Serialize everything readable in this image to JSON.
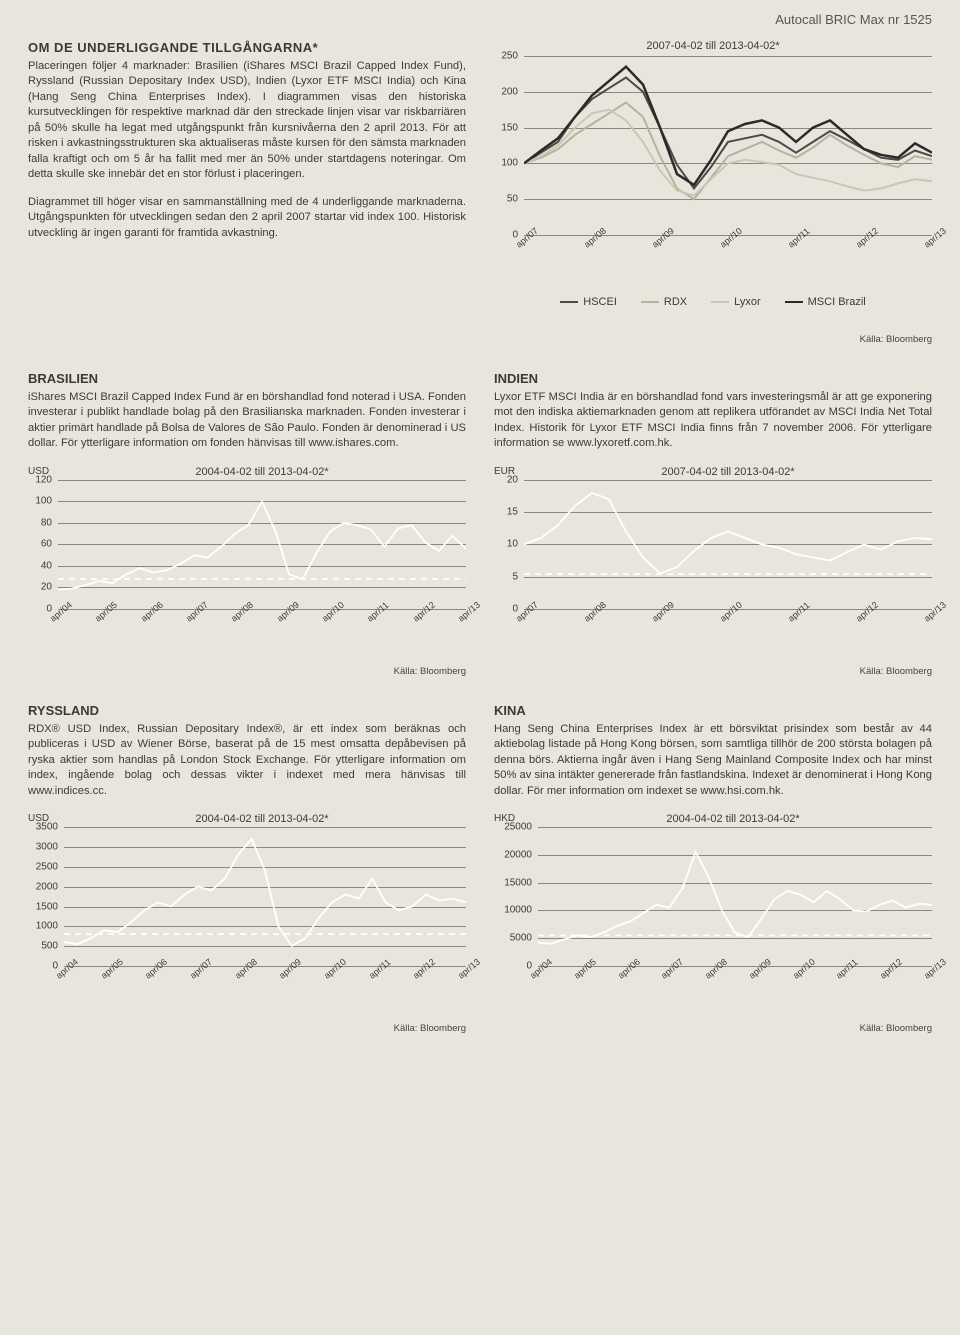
{
  "header_right": "Autocall BRIC Max nr 1525",
  "top": {
    "heading": "OM DE UNDERLIGGANDE TILLGÅNGARNA*",
    "para1": "Placeringen följer 4 marknader: Brasilien (iShares MSCI Brazil Capped Index Fund), Ryssland (Russian Depositary Index USD), Indien (Lyxor ETF MSCI India) och Kina (Hang Seng China Enterprises Index). I diagrammen visas den historiska kursutvecklingen för respektive marknad där den streckade linjen visar var riskbarriären på 50% skulle ha legat med utgångspunkt från kursnivåerna den 2 april 2013. För att risken i avkastningsstrukturen ska aktualiseras måste kursen för den sämsta marknaden falla kraftigt och om 5 år ha fallit med mer än 50% under startdagens noteringar. Om detta skulle ske innebär det en stor förlust i placeringen.",
    "para2": "Diagrammet till höger visar en sammanställning med de 4 underliggande marknaderna. Utgångspunkten för utvecklingen sedan den 2 april 2007 startar vid index 100. Historisk utveckling är ingen garanti för framtida avkastning."
  },
  "chart_main": {
    "title": "2007-04-02 till 2013-04-02*",
    "ylim": [
      0,
      250
    ],
    "ytick_step": 50,
    "xticks": [
      "apr/07",
      "apr/08",
      "apr/09",
      "apr/10",
      "apr/11",
      "apr/12",
      "apr/13"
    ],
    "series": {
      "hscei": {
        "label": "HSCEI",
        "color": "#4a4a4a",
        "w": 2,
        "values": [
          100,
          115,
          130,
          165,
          190,
          205,
          220,
          200,
          150,
          98,
          65,
          95,
          130,
          135,
          140,
          130,
          115,
          130,
          145,
          133,
          120,
          108,
          105,
          118,
          110
        ]
      },
      "rdx": {
        "label": "RDX",
        "color": "#b6b29e",
        "w": 2,
        "values": [
          100,
          108,
          120,
          140,
          155,
          170,
          185,
          165,
          110,
          65,
          50,
          80,
          110,
          120,
          130,
          118,
          108,
          122,
          140,
          125,
          112,
          100,
          95,
          110,
          105
        ]
      },
      "lyxor": {
        "label": "Lyxor",
        "color": "#c9c6b8",
        "w": 2,
        "values": [
          100,
          110,
          125,
          150,
          170,
          175,
          160,
          130,
          90,
          62,
          55,
          78,
          100,
          105,
          102,
          98,
          85,
          80,
          75,
          68,
          62,
          65,
          72,
          78,
          75
        ]
      },
      "msci": {
        "label": "MSCI Brazil",
        "color": "#2a2a2a",
        "w": 2.5,
        "values": [
          100,
          118,
          135,
          165,
          195,
          215,
          235,
          210,
          150,
          85,
          70,
          105,
          145,
          155,
          160,
          150,
          130,
          150,
          160,
          140,
          120,
          112,
          108,
          128,
          115
        ]
      }
    },
    "source": "Källa: Bloomberg"
  },
  "brasilien": {
    "heading": "BRASILIEN",
    "para": "iShares MSCI Brazil Capped Index Fund är en börshandlad fond noterad i USA. Fonden investerar i publikt handlade bolag på den Brasilianska marknaden. Fonden investerar i aktier primärt handlade på Bolsa de Valores de São Paulo. Fonden är denominerad i US dollar. För ytterligare information om fonden hänvisas till www.ishares.com."
  },
  "indien": {
    "heading": "INDIEN",
    "para": "Lyxor ETF MSCI India är en börshandlad fond vars investeringsmål är att ge exponering mot den indiska aktiemarknaden genom att replikera utförandet av MSCI India Net Total Index. Historik för Lyxor ETF MSCI India finns från 7 november 2006. För ytterligare information se www.lyxoretf.com.hk."
  },
  "ryssland": {
    "heading": "RYSSLAND",
    "para": "RDX® USD Index, Russian Depositary Index®, är ett index som beräknas och publiceras i USD av Wiener Börse, baserat på de 15 mest omsatta depåbevisen på ryska aktier som handlas på London Stock Exchange. För ytterligare information om index, ingående bolag och dessas vikter i indexet med mera hänvisas till www.indices.cc."
  },
  "kina": {
    "heading": "KINA",
    "para": "Hang Seng China Enterprises Index är ett börsviktat prisindex som består av 44 aktiebolag listade på Hong Kong börsen, som samtliga tillhör de 200 största bolagen på denna börs. Aktierna ingår även i Hang Seng Mainland Composite Index och har minst 50% av sina intäkter genererade från fastlandskina. Indexet är denominerat i Hong Kong dollar. För mer information om indexet se www.hsi.com.hk."
  },
  "chart_brasilien": {
    "unit": "USD",
    "title": "2004-04-02 till 2013-04-02*",
    "ylim": [
      0,
      120
    ],
    "ytick_step": 20,
    "xticks": [
      "apr/04",
      "apr/05",
      "apr/06",
      "apr/07",
      "apr/08",
      "apr/09",
      "apr/10",
      "apr/11",
      "apr/12",
      "apr/13"
    ],
    "values": [
      18,
      19,
      22,
      26,
      24,
      32,
      38,
      34,
      36,
      42,
      50,
      48,
      58,
      70,
      78,
      100,
      72,
      32,
      28,
      52,
      72,
      80,
      78,
      74,
      58,
      75,
      78,
      62,
      54,
      68,
      56
    ],
    "barrier": 28,
    "source": "Källa: Bloomberg"
  },
  "chart_indien": {
    "unit": "EUR",
    "title": "2007-04-02 till 2013-04-02*",
    "ylim": [
      0,
      20
    ],
    "ytick_step": 5,
    "xticks": [
      "apr/07",
      "apr/08",
      "apr/09",
      "apr/10",
      "apr/11",
      "apr/12",
      "apr/13"
    ],
    "values": [
      10,
      11,
      13,
      16,
      18,
      17,
      12,
      8,
      5.5,
      6.5,
      9,
      11,
      12,
      11,
      10,
      9.5,
      8.5,
      8,
      7.5,
      8.8,
      10,
      9.2,
      10.5,
      11,
      10.8
    ],
    "barrier": 5.4,
    "source": "Källa: Bloomberg"
  },
  "chart_ryssland": {
    "unit": "USD",
    "title": "2004-04-02 till 2013-04-02*",
    "ylim": [
      0,
      3500
    ],
    "ytick_step": 500,
    "xticks": [
      "apr/04",
      "apr/05",
      "apr/06",
      "apr/07",
      "apr/08",
      "apr/09",
      "apr/10",
      "apr/11",
      "apr/12",
      "apr/13"
    ],
    "values": [
      600,
      550,
      700,
      900,
      850,
      1100,
      1400,
      1600,
      1500,
      1800,
      2000,
      1900,
      2200,
      2800,
      3200,
      2400,
      1000,
      500,
      700,
      1200,
      1600,
      1800,
      1700,
      2200,
      1600,
      1400,
      1500,
      1800,
      1650,
      1700,
      1600
    ],
    "barrier": 800,
    "source": "Källa: Bloomberg"
  },
  "chart_kina": {
    "unit": "HKD",
    "title": "2004-04-02 till 2013-04-02*",
    "ylim": [
      0,
      25000
    ],
    "ytick_step": 5000,
    "xticks": [
      "apr/04",
      "apr/05",
      "apr/06",
      "apr/07",
      "apr/08",
      "apr/09",
      "apr/10",
      "apr/11",
      "apr/12",
      "apr/13"
    ],
    "values": [
      4200,
      4000,
      4800,
      5500,
      5200,
      6000,
      7200,
      8000,
      9500,
      11000,
      10500,
      14000,
      20500,
      16000,
      10000,
      6000,
      5200,
      8500,
      12000,
      13500,
      12800,
      11500,
      13500,
      12000,
      10000,
      9800,
      11000,
      11800,
      10500,
      11200,
      11000
    ],
    "barrier": 5500,
    "source": "Källa: Bloomberg"
  },
  "colors": {
    "line": "#ffffff",
    "dash": "#ffffff",
    "grid": "#8a887c"
  }
}
